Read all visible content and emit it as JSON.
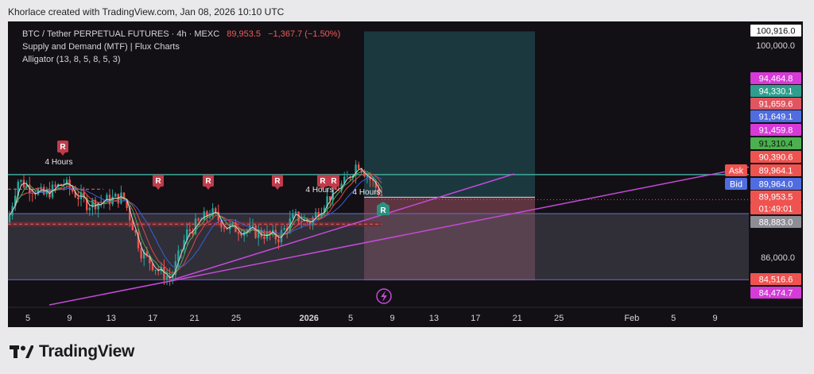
{
  "attribution": "Khorlace created with TradingView.com, Jan 08, 2026 10:10 UTC",
  "brand": {
    "name": "TradingView",
    "logo_icon": "tradingview-logo-icon"
  },
  "legend": {
    "symbol_line": "BTC / Tether PERPETUAL FUTURES · 4h · MEXC",
    "price": "89,953.5",
    "change": "−1,367.7 (−1.50%)",
    "indicator_1": "Supply and Demand (MTF) | Flux Charts",
    "indicator_2": "Alligator (13, 8, 5, 8, 5, 3)"
  },
  "colors": {
    "background": "#131015",
    "candle_up": "#26a69a",
    "candle_down": "#ef5350",
    "resistance_line": "#3fa89a",
    "trendline": "#c44ad8",
    "demand_zone": "#555562",
    "reward_zone": "#1e3f47",
    "risk_zone": "#6b3b48"
  },
  "chart_data": {
    "type": "candlestick",
    "title": "BTC / Tether PERPETUAL FUTURES · 4h · MEXC",
    "x_tick_labels": [
      "5",
      "9",
      "13",
      "17",
      "21",
      "25",
      "2026",
      "5",
      "9",
      "13",
      "17",
      "21",
      "25",
      "Feb",
      "5",
      "9"
    ],
    "y_tick_labels": [
      "100,000.0",
      "86,000.0"
    ],
    "ylim": [
      83000,
      102500
    ],
    "grid": false,
    "price_labels": [
      {
        "text": "100,916.0",
        "value": 100916.0,
        "bg": "#ffffff",
        "fg": "#111111"
      },
      {
        "text": "94,464.8",
        "value": 94464.8,
        "bg": "#d63ad8",
        "fg": "#ffffff"
      },
      {
        "text": "94,330.1",
        "value": 94330.1,
        "bg": "#2f9e8f",
        "fg": "#ffffff"
      },
      {
        "text": "91,659.6",
        "value": 91659.6,
        "bg": "#e0555f",
        "fg": "#ffffff"
      },
      {
        "text": "91,649.1",
        "value": 91649.1,
        "bg": "#4f6de0",
        "fg": "#ffffff"
      },
      {
        "text": "91,459.8",
        "value": 91459.8,
        "bg": "#d63ad8",
        "fg": "#ffffff"
      },
      {
        "text": "91,310.4",
        "value": 91310.4,
        "bg": "#4caf50",
        "fg": "#111111"
      },
      {
        "text": "90,390.6",
        "value": 90390.6,
        "bg": "#ef5350",
        "fg": "#ffffff"
      },
      {
        "text": "89,964.1",
        "value": 89964.1,
        "bg": "#ef5350",
        "fg": "#ffffff",
        "tag": "Ask"
      },
      {
        "text": "89,964.0",
        "value": 89964.0,
        "bg": "#4f6de0",
        "fg": "#ffffff",
        "tag": "Bid"
      },
      {
        "text": "89,953.5",
        "value": 89953.5,
        "bg": "#ef5350",
        "fg": "#ffffff"
      },
      {
        "text": "01:49:01",
        "value": 89953.5,
        "bg": "#ef5350",
        "fg": "#ffffff",
        "countdown": true
      },
      {
        "text": "88,883.0",
        "value": 88883.0,
        "bg": "#8d8d96",
        "fg": "#ffffff"
      },
      {
        "text": "84,516.6",
        "value": 84516.6,
        "bg": "#ef5350",
        "fg": "#ffffff"
      },
      {
        "text": "84,474.7",
        "value": 84474.7,
        "bg": "#d63ad8",
        "fg": "#ffffff"
      }
    ],
    "zones": {
      "demand_top": 88883.0,
      "demand_bottom": 84516.6,
      "resistance": 91459.8,
      "mid_line": 90390.6,
      "target_top": 100916.0,
      "entry": 89964.0,
      "stop": 84474.7
    },
    "markers": {
      "resistance_label": "R",
      "support_label": "R",
      "timeframe_label": "4 Hours",
      "lightning_icon": "lightning-icon"
    }
  }
}
